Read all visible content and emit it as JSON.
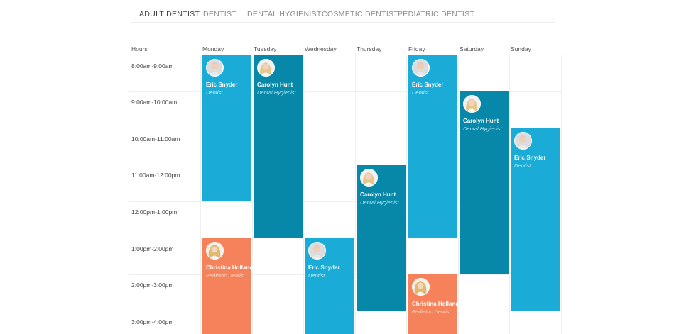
{
  "tabs": [
    "Adult Dentist",
    "Dentist",
    "Dental Hygienist",
    "Cosmetic Dentist",
    "Pediatric Dentist"
  ],
  "active_tab": "Adult Dentist",
  "table": {
    "hours_label": "Hours",
    "days": [
      "Monday",
      "Tuesday",
      "Wednesday",
      "Thursday",
      "Friday",
      "Saturday",
      "Sunday"
    ],
    "times": [
      "8:00am-9:00am",
      "9:00am-10:00am",
      "10:00am-11:00am",
      "11:00am-12:00pm",
      "12:00pm-1:00pm",
      "1:00pm-2:00pm",
      "2:00pm-3:00pm",
      "3:00pm-4:00pm"
    ]
  },
  "events": [
    {
      "name": "Eric Snyder",
      "role": "Dentist",
      "color": "#1aabd6",
      "avatar": "eric"
    },
    {
      "name": "Carolyn Hunt",
      "role": "Dental Hygienist",
      "color": "#0888a8",
      "avatar": "carolyn"
    },
    {
      "name": "Eric Snyder",
      "role": "Dentist",
      "color": "#1aabd6",
      "avatar": "eric"
    },
    {
      "name": "Carolyn Hunt",
      "role": "Dental Hygienist",
      "color": "#0888a8",
      "avatar": "carolyn"
    },
    {
      "name": "Eric Snyder",
      "role": "Dentist",
      "color": "#1aabd6",
      "avatar": "eric"
    },
    {
      "name": "Christina Holland",
      "role": "Pediatric Dentist",
      "color": "#f5825a",
      "avatar": "christina"
    },
    {
      "name": "Carolyn Hunt",
      "role": "Dental Hygienist",
      "color": "#0888a8",
      "avatar": "carolyn"
    },
    {
      "name": "Eric Snyder",
      "role": "Dentist",
      "color": "#1aabd6",
      "avatar": "eric"
    },
    {
      "name": "Christina Holland",
      "role": "Pediatric Dentist",
      "color": "#f5825a",
      "avatar": "christina"
    }
  ]
}
